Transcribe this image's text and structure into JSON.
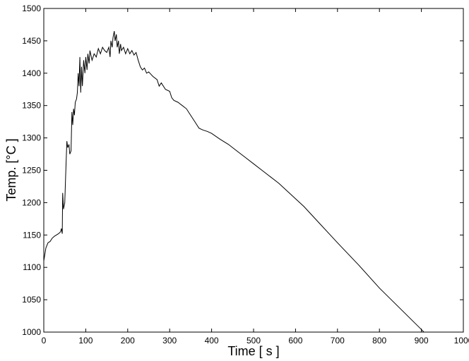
{
  "chart_data": {
    "type": "line",
    "xlabel": "Time [ s ]",
    "ylabel": "Temp. [°C ]",
    "x": [
      0,
      5,
      10,
      15,
      20,
      25,
      30,
      35,
      40,
      42,
      44,
      45,
      47,
      50,
      52,
      55,
      57,
      60,
      62,
      65,
      67,
      69,
      71,
      73,
      75,
      78,
      80,
      82,
      84,
      86,
      88,
      90,
      92,
      95,
      98,
      100,
      103,
      105,
      108,
      110,
      115,
      120,
      125,
      130,
      135,
      140,
      145,
      150,
      155,
      158,
      160,
      163,
      165,
      168,
      170,
      173,
      175,
      178,
      180,
      183,
      185,
      190,
      195,
      200,
      205,
      210,
      215,
      220,
      225,
      230,
      235,
      240,
      245,
      250,
      260,
      270,
      275,
      280,
      290,
      300,
      305,
      310,
      320,
      330,
      340,
      350,
      360,
      365,
      370,
      380,
      390,
      400,
      420,
      440,
      460,
      480,
      500,
      520,
      540,
      560,
      580,
      600,
      620,
      640,
      660,
      680,
      700,
      750,
      800,
      850,
      900,
      906
    ],
    "series": [
      {
        "name": "Temp",
        "color": "#000000",
        "values": [
          1110,
          1130,
          1138,
          1140,
          1145,
          1148,
          1150,
          1152,
          1155,
          1160,
          1152,
          1215,
          1190,
          1200,
          1240,
          1295,
          1285,
          1290,
          1275,
          1280,
          1340,
          1320,
          1345,
          1335,
          1355,
          1360,
          1370,
          1400,
          1380,
          1425,
          1370,
          1410,
          1380,
          1420,
          1400,
          1425,
          1405,
          1430,
          1415,
          1435,
          1420,
          1430,
          1425,
          1438,
          1430,
          1440,
          1435,
          1432,
          1440,
          1425,
          1450,
          1440,
          1455,
          1465,
          1450,
          1460,
          1440,
          1450,
          1430,
          1445,
          1435,
          1440,
          1430,
          1438,
          1430,
          1435,
          1428,
          1432,
          1420,
          1410,
          1405,
          1408,
          1400,
          1402,
          1395,
          1390,
          1380,
          1385,
          1375,
          1372,
          1362,
          1358,
          1355,
          1350,
          1345,
          1335,
          1325,
          1320,
          1315,
          1312,
          1310,
          1307,
          1298,
          1290,
          1280,
          1270,
          1260,
          1250,
          1240,
          1230,
          1218,
          1206,
          1194,
          1180,
          1166,
          1152,
          1138,
          1104,
          1068,
          1036,
          1004,
          1000
        ]
      }
    ],
    "xlim": [
      0,
      1000
    ],
    "ylim": [
      1000,
      1500
    ],
    "xticks": [
      0,
      100,
      200,
      300,
      400,
      500,
      600,
      700,
      800,
      900,
      1000
    ],
    "yticks": [
      1000,
      1050,
      1100,
      1150,
      1200,
      1250,
      1300,
      1350,
      1400,
      1450,
      1500
    ],
    "grid": false
  }
}
